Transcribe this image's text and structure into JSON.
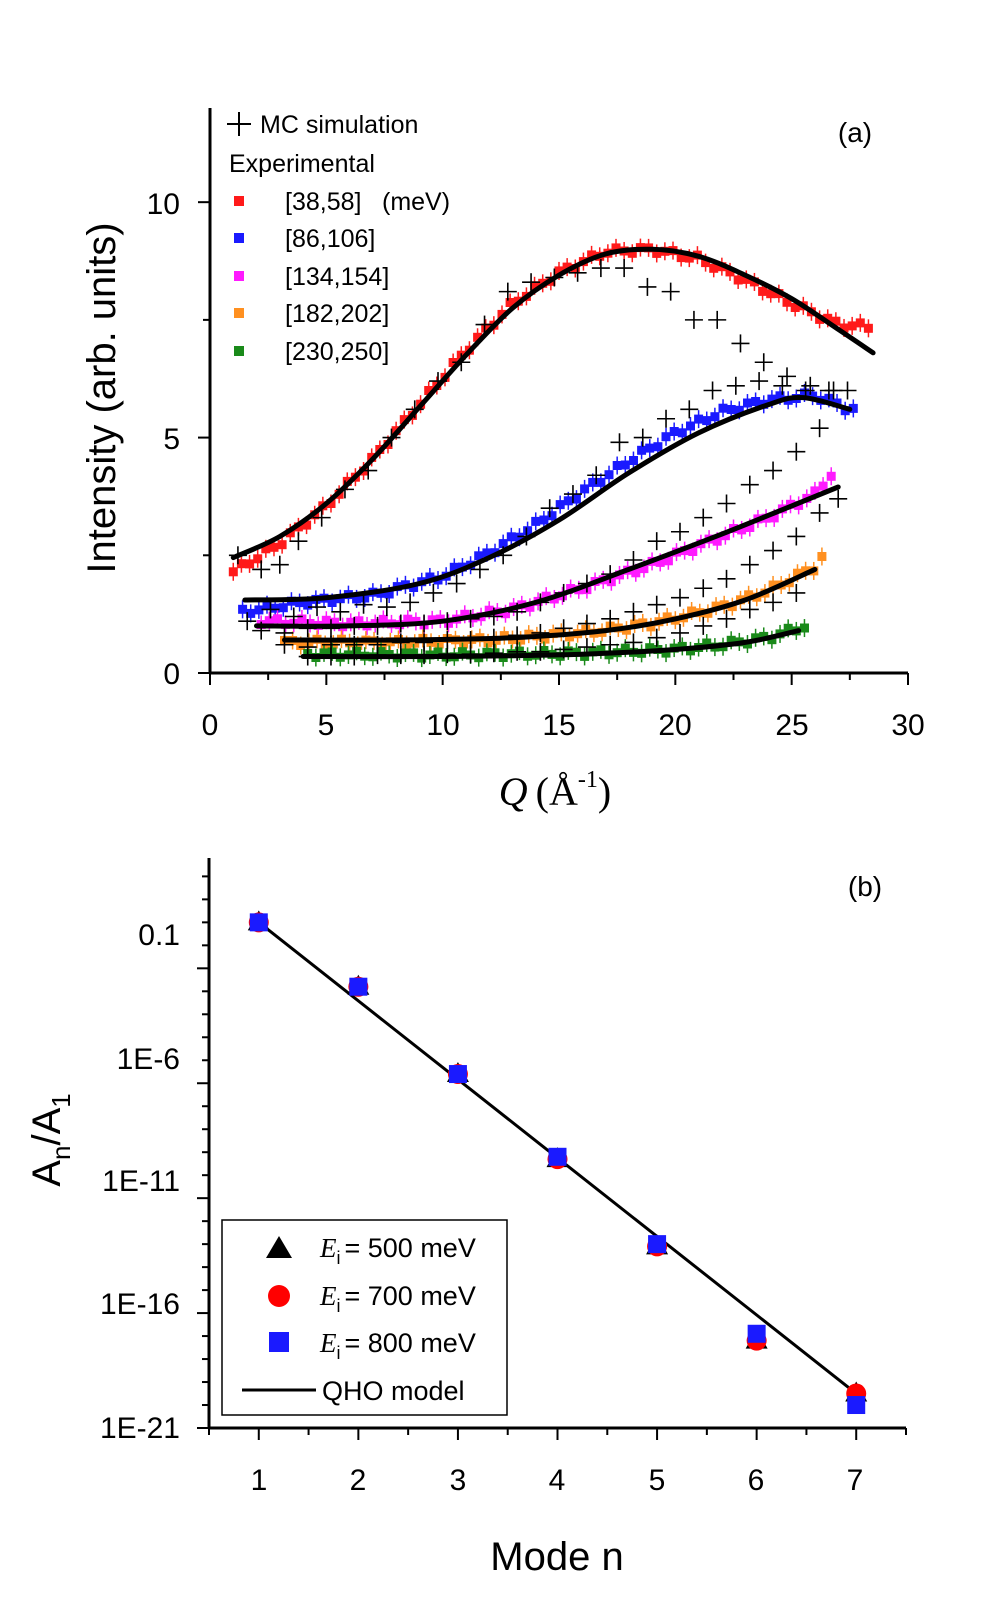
{
  "chart_data": [
    {
      "type": "scatter",
      "panel_label": "(a)",
      "xlabel": "Q",
      "xlabel_unit": "(Å",
      "xlabel_unit_exp": "-1",
      "xlabel_unit_close": ")",
      "ylabel": "Intensity (arb. units)",
      "xlim": [
        0,
        30
      ],
      "ylim": [
        0,
        12
      ],
      "xticks": [
        0,
        5,
        10,
        15,
        20,
        25,
        30
      ],
      "yticks": [
        0,
        5,
        10
      ],
      "legend_position": "top-left",
      "legend": {
        "sim_label": "MC simulation",
        "exp_header": "Experimental",
        "unit_note": "(meV)"
      },
      "series": [
        {
          "name": "[38,58]",
          "color": "#ff1a1a",
          "range": [
            1,
            28.6
          ],
          "step": 0.35,
          "x": [
            1,
            3,
            5,
            7,
            9,
            11,
            13,
            15,
            17,
            19,
            21,
            23,
            25,
            27,
            28.5
          ],
          "y": [
            2.15,
            2.75,
            3.55,
            4.55,
            5.7,
            6.85,
            7.85,
            8.5,
            8.95,
            9.0,
            8.8,
            8.35,
            7.85,
            7.4,
            7.35
          ]
        },
        {
          "name": "[86,106]",
          "color": "#1a1aff",
          "range": [
            1.4,
            27.8
          ],
          "step": 0.35,
          "x": [
            1.4,
            4,
            7,
            10,
            12,
            14,
            16,
            18,
            20,
            22,
            24,
            26,
            27.5
          ],
          "y": [
            1.3,
            1.5,
            1.65,
            2.05,
            2.55,
            3.15,
            3.85,
            4.5,
            5.1,
            5.55,
            5.8,
            5.9,
            5.6
          ]
        },
        {
          "name": "[134,154]",
          "color": "#ff1aff",
          "range": [
            2.2,
            27
          ],
          "step": 0.35,
          "x": [
            2.2,
            6,
            10,
            13,
            16,
            19,
            22,
            24,
            26,
            27
          ],
          "y": [
            1.1,
            1.05,
            1.1,
            1.35,
            1.8,
            2.3,
            2.9,
            3.3,
            3.8,
            4.4
          ]
        },
        {
          "name": "[182,202]",
          "color": "#ff9020",
          "range": [
            3.2,
            26.3
          ],
          "step": 0.35,
          "x": [
            3.2,
            8,
            12,
            16,
            19,
            22,
            24,
            26,
            26.3
          ],
          "y": [
            0.65,
            0.65,
            0.7,
            0.85,
            1.05,
            1.4,
            1.75,
            2.25,
            2.45
          ]
        },
        {
          "name": "[230,250]",
          "color": "#1a8a1a",
          "range": [
            4.2,
            25.6
          ],
          "step": 0.35,
          "x": [
            4.2,
            10,
            16,
            20,
            22,
            24,
            25.6
          ],
          "y": [
            0.4,
            0.38,
            0.42,
            0.5,
            0.6,
            0.75,
            1.0
          ]
        }
      ],
      "fits": [
        {
          "x": [
            1,
            3,
            5,
            7,
            9,
            11,
            13,
            15,
            17,
            19,
            21,
            23,
            25,
            27,
            28.5
          ],
          "y": [
            2.45,
            2.9,
            3.6,
            4.55,
            5.65,
            6.75,
            7.75,
            8.45,
            8.9,
            9.0,
            8.85,
            8.45,
            7.95,
            7.3,
            6.8
          ]
        },
        {
          "x": [
            1.5,
            5,
            9,
            12,
            15,
            18,
            21,
            24,
            25.5,
            27.5
          ],
          "y": [
            1.55,
            1.6,
            1.9,
            2.45,
            3.25,
            4.25,
            5.1,
            5.7,
            5.85,
            5.6
          ]
        },
        {
          "x": [
            2,
            6,
            10,
            14,
            18,
            22,
            25,
            27
          ],
          "y": [
            1.0,
            1.0,
            1.1,
            1.5,
            2.2,
            2.95,
            3.55,
            3.95
          ]
        },
        {
          "x": [
            3.2,
            8,
            13,
            17,
            20,
            23,
            26
          ],
          "y": [
            0.7,
            0.7,
            0.75,
            0.9,
            1.15,
            1.55,
            2.2
          ]
        },
        {
          "x": [
            4,
            10,
            16,
            20,
            23,
            25.3
          ],
          "y": [
            0.35,
            0.35,
            0.4,
            0.5,
            0.65,
            0.9
          ]
        }
      ],
      "mc_simulation": [
        {
          "x": [
            1.2,
            2.2,
            3.0,
            3.8,
            4.8,
            5.8,
            6.8,
            7.8,
            8.8,
            9.8,
            10.8,
            11.8,
            12.8,
            13.8,
            14.8,
            15.8,
            16.8,
            17.8,
            18.8,
            19.8,
            20.8,
            21.8,
            22.8,
            23.8,
            24.8,
            25.8,
            26.8
          ],
          "y": [
            2.5,
            2.2,
            2.3,
            2.8,
            3.3,
            3.9,
            4.3,
            5.0,
            5.6,
            6.2,
            6.6,
            7.4,
            8.1,
            8.3,
            8.4,
            8.5,
            8.6,
            8.6,
            8.2,
            8.1,
            7.5,
            7.5,
            7.0,
            6.6,
            6.3,
            6.1,
            6.0
          ]
        },
        {
          "x": [
            1.6,
            2.6,
            3.6,
            4.6,
            5.6,
            6.6,
            7.6,
            8.6,
            9.6,
            10.6,
            11.6,
            12.6,
            13.6,
            14.6,
            15.6,
            16.6,
            17.6,
            18.6,
            19.6,
            20.6,
            21.6,
            22.6,
            23.6,
            24.6,
            25.6,
            26.6,
            27.4
          ],
          "y": [
            1.1,
            1.35,
            1.2,
            1.4,
            1.3,
            1.45,
            1.4,
            1.5,
            1.7,
            1.9,
            2.2,
            2.5,
            2.9,
            3.5,
            3.8,
            4.2,
            4.9,
            5.0,
            5.4,
            5.6,
            6.0,
            6.1,
            6.2,
            6.1,
            6.0,
            6.0,
            6.0
          ]
        },
        {
          "x": [
            2.2,
            3.2,
            4.2,
            5.2,
            6.2,
            7.2,
            8.2,
            9.2,
            10.2,
            11.2,
            12.2,
            13.2,
            14.2,
            15.2,
            16.2,
            17.2,
            18.2,
            19.2,
            20.2,
            21.2,
            22.2,
            23.2,
            24.2,
            25.2,
            26.2,
            27.0
          ],
          "y": [
            0.9,
            0.85,
            0.95,
            0.95,
            1.0,
            1.0,
            1.05,
            1.05,
            1.1,
            1.15,
            1.2,
            1.3,
            1.5,
            1.7,
            1.9,
            2.1,
            2.4,
            2.8,
            3.0,
            3.3,
            3.6,
            4.0,
            4.3,
            4.7,
            5.2,
            3.7
          ]
        },
        {
          "x": [
            3.2,
            4.2,
            5.2,
            6.2,
            7.2,
            8.2,
            9.2,
            10.2,
            11.2,
            12.2,
            13.2,
            14.2,
            15.2,
            16.2,
            17.2,
            18.2,
            19.2,
            20.2,
            21.2,
            22.2,
            23.2,
            24.2,
            25.2,
            26.2
          ],
          "y": [
            0.6,
            0.55,
            0.6,
            0.6,
            0.6,
            0.65,
            0.65,
            0.7,
            0.7,
            0.75,
            0.8,
            0.85,
            0.95,
            1.05,
            1.15,
            1.3,
            1.45,
            1.6,
            1.8,
            2.0,
            2.3,
            2.6,
            2.9,
            3.4
          ]
        },
        {
          "x": [
            4.2,
            5.2,
            6.2,
            7.2,
            8.2,
            9.2,
            10.2,
            11.2,
            12.2,
            13.2,
            14.2,
            15.2,
            16.2,
            17.2,
            18.2,
            19.2,
            20.2,
            21.2,
            22.2,
            23.2,
            24.2,
            25.2
          ],
          "y": [
            0.35,
            0.35,
            0.35,
            0.38,
            0.38,
            0.38,
            0.4,
            0.4,
            0.42,
            0.45,
            0.45,
            0.5,
            0.55,
            0.6,
            0.65,
            0.75,
            0.85,
            1.0,
            1.15,
            1.35,
            1.5,
            1.7
          ]
        }
      ]
    },
    {
      "type": "scatter",
      "panel_label": "(b)",
      "xlabel": "Mode n",
      "ylabel": "A",
      "ylabel_sub_n": "n",
      "ylabel_slash": "/A",
      "ylabel_sub_1": "1",
      "xlim": [
        0.5,
        7.5
      ],
      "ylim_log10": [
        -21,
        3.8
      ],
      "yscale": "log",
      "xticks": [
        "1",
        "2",
        "3",
        "4",
        "5",
        "6",
        "7"
      ],
      "yticks": [
        "0.1",
        "1E-6",
        "1E-11",
        "1E-16",
        "1E-21"
      ],
      "legend_position": "bottom-left",
      "legend": {
        "italic_symbol": "E",
        "subscript": "i",
        "fit_label": "QHO model"
      },
      "series": [
        {
          "name": "= 500 meV",
          "marker": "triangle",
          "color": "#000000",
          "x": [
            1,
            2,
            3,
            4,
            5,
            6,
            7
          ],
          "log10_y": [
            1.0,
            -1.8,
            -5.6,
            -9.3,
            -13.1,
            -17.2,
            -19.5
          ]
        },
        {
          "name": "= 700 meV",
          "marker": "circle",
          "color": "#ff0000",
          "x": [
            1,
            2,
            3,
            4,
            5,
            6,
            7
          ],
          "log10_y": [
            1.0,
            -1.8,
            -5.6,
            -9.3,
            -13.1,
            -17.2,
            -19.5
          ]
        },
        {
          "name": "= 800 meV",
          "marker": "square",
          "color": "#1a1aff",
          "x": [
            1,
            2,
            3,
            4,
            5,
            6,
            7
          ],
          "log10_y": [
            1.0,
            -1.8,
            -5.6,
            -9.2,
            -13.0,
            -16.9,
            -20.0
          ]
        }
      ],
      "fit": {
        "x": [
          1,
          7
        ],
        "log10_y": [
          1.0,
          -19.5
        ]
      }
    }
  ]
}
